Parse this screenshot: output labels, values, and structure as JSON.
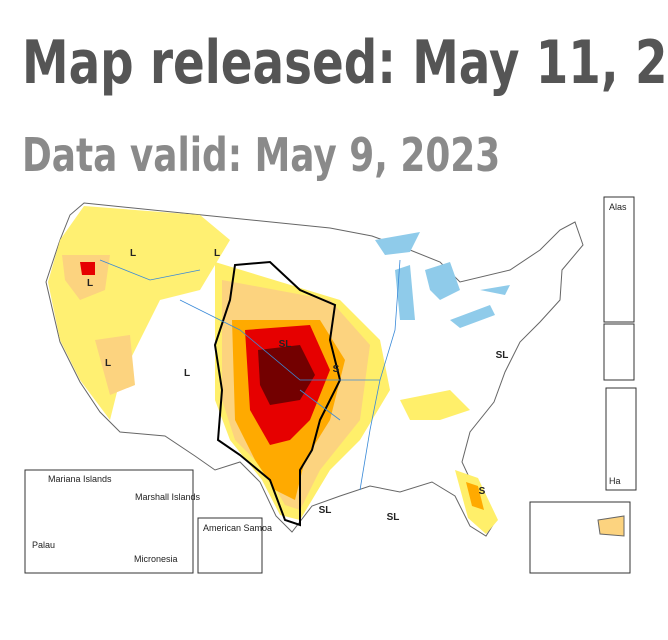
{
  "header": {
    "title": "Map released: May 11, 2",
    "subtitle": "Data valid: May 9, 2023"
  },
  "map": {
    "labels": [
      "L",
      "L",
      "L",
      "L",
      "L",
      "SL",
      "S",
      "SL",
      "SL",
      "S",
      "SL"
    ],
    "insets": {
      "pacific": [
        "Mariana Islands",
        "Marshall Islands",
        "Palau",
        "Micronesia"
      ],
      "samoa": "American Samoa",
      "alaska": "Alas",
      "hawaii": "Ha"
    }
  }
}
